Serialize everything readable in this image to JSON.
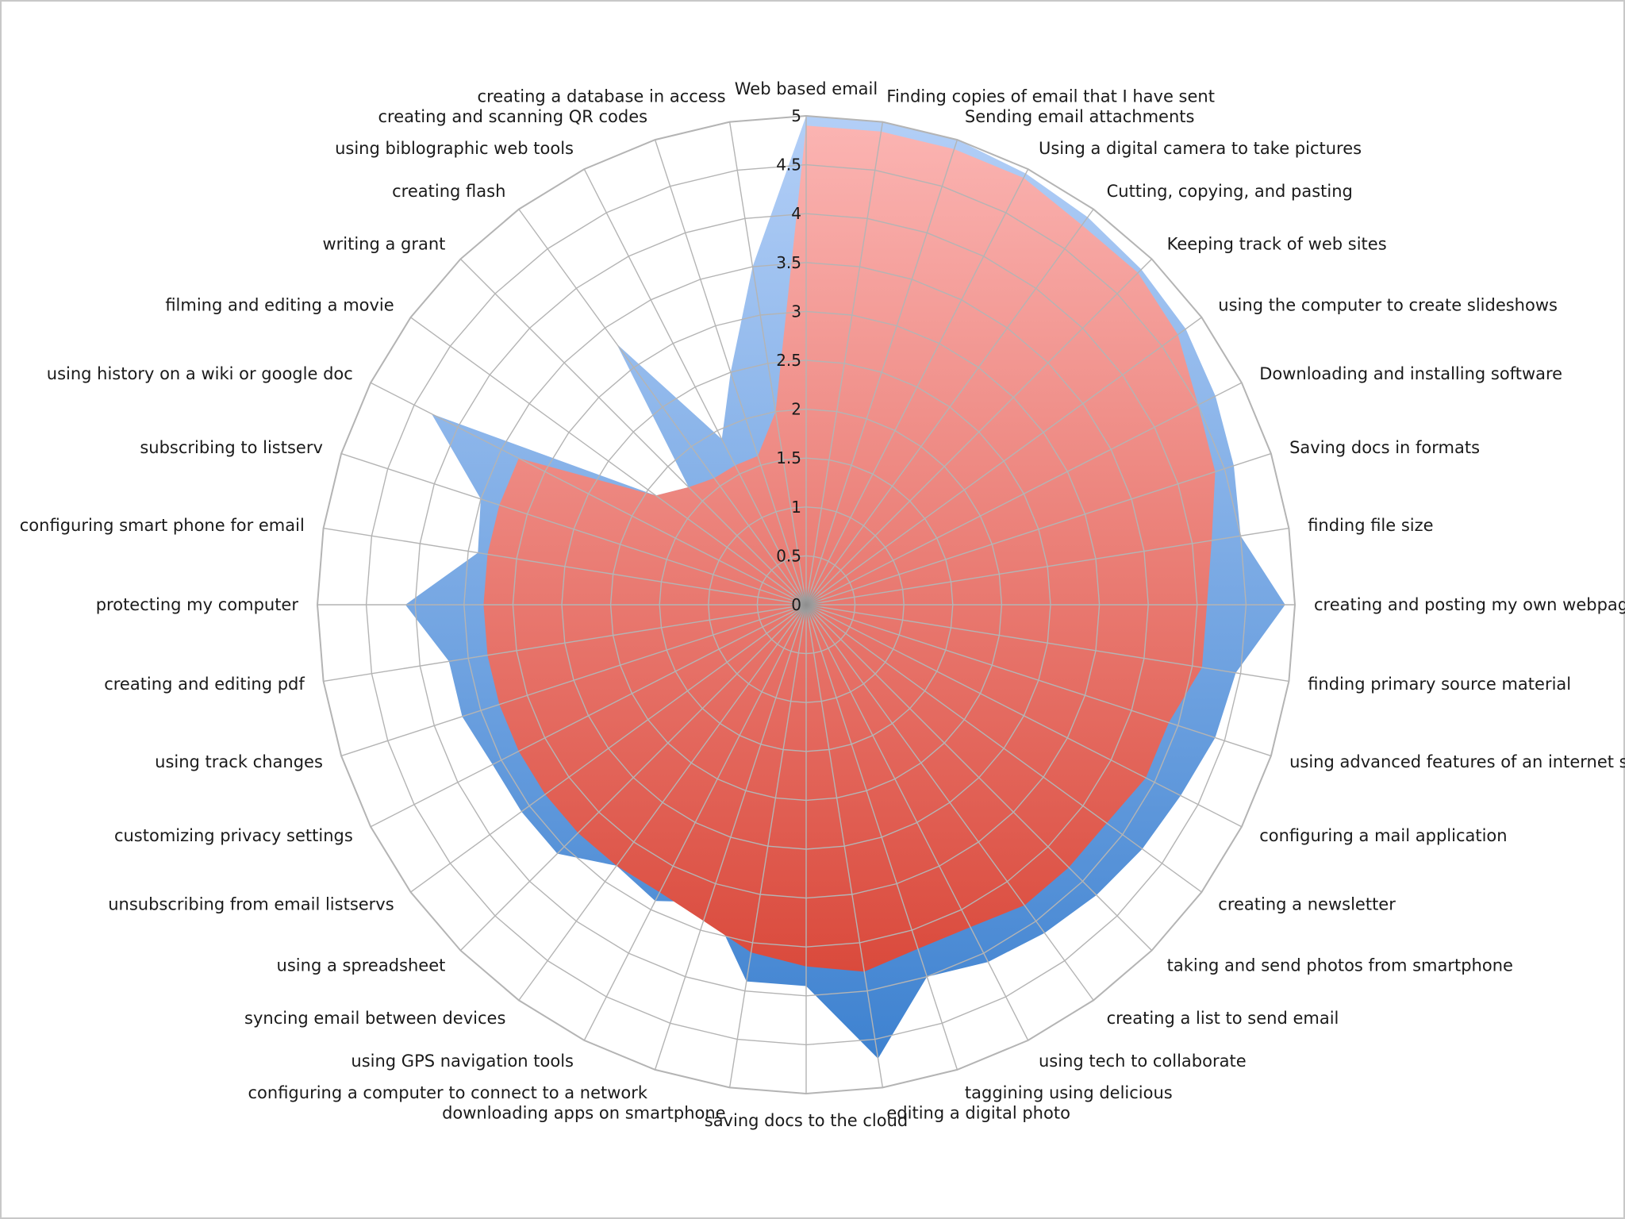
{
  "chart_data": {
    "type": "radar",
    "title": "",
    "r_min": 0,
    "r_max": 5,
    "r_ticks": [
      0,
      0.5,
      1,
      1.5,
      2,
      2.5,
      3,
      3.5,
      4,
      4.5,
      5
    ],
    "r_tick_labels": [
      "0",
      "0.5",
      "1",
      "1.5",
      "2",
      "2.5",
      "3",
      "3.5",
      "4",
      "4.5",
      "5"
    ],
    "categories": [
      "Web based email",
      "Finding copies of email that I have sent",
      "Sending email attachments",
      "Using a digital camera to take pictures",
      "Cutting, copying, and pasting",
      "Keeping track of web sites",
      "using the computer to create slideshows",
      "Downloading and installing software",
      "Saving docs in formats",
      "finding file size",
      "creating and posting my own webpage",
      "finding primary source material",
      "using advanced features of an internet se",
      "configuring a mail application",
      "creating a newsletter",
      "taking and send photos from smartphone",
      "creating a list to send email",
      "using tech to collaborate",
      "taggining using delicious",
      "editing a digital photo",
      "saving docs to the cloud",
      "downloading apps on smartphone",
      "configuring a computer to connect to a network",
      "using GPS navigation tools",
      "syncing email between devices",
      "using a spreadsheet",
      "unsubscribing from email listservs",
      "customizing privacy settings",
      "using track changes",
      "creating and editing pdf",
      "protecting my computer",
      "configuring smart phone for email",
      "subscribing to listserv",
      "using history on a wiki or google doc",
      "filming and editing a movie",
      "writing a grant",
      "creating flash",
      "using biblographic web tools",
      "creating and scanning QR codes",
      "creating a database in access"
    ],
    "series": [
      {
        "color": "#5a95da",
        "values": [
          5.0,
          5.0,
          5.0,
          4.95,
          4.9,
          4.85,
          4.8,
          4.7,
          4.6,
          4.5,
          4.9,
          4.45,
          4.4,
          4.3,
          4.25,
          4.2,
          4.15,
          4.1,
          4.0,
          4.7,
          3.9,
          3.9,
          3.2,
          3.4,
          3.3,
          3.6,
          3.6,
          3.6,
          3.7,
          3.7,
          4.1,
          3.4,
          3.5,
          4.3,
          1.9,
          1.7,
          3.3,
          1.9,
          2.5,
          3.5
        ]
      },
      {
        "color": "#ec7c74",
        "values": [
          4.9,
          4.9,
          4.9,
          4.9,
          4.8,
          4.8,
          4.7,
          4.5,
          4.4,
          4.2,
          4.1,
          4.1,
          3.9,
          3.9,
          3.8,
          3.8,
          3.8,
          3.7,
          3.7,
          3.8,
          3.7,
          3.6,
          3.4,
          3.3,
          3.3,
          3.3,
          3.3,
          3.3,
          3.3,
          3.3,
          3.3,
          3.3,
          3.3,
          3.3,
          1.9,
          1.7,
          1.6,
          1.6,
          1.6,
          2.0
        ]
      }
    ],
    "grid": true,
    "legend": "none"
  }
}
